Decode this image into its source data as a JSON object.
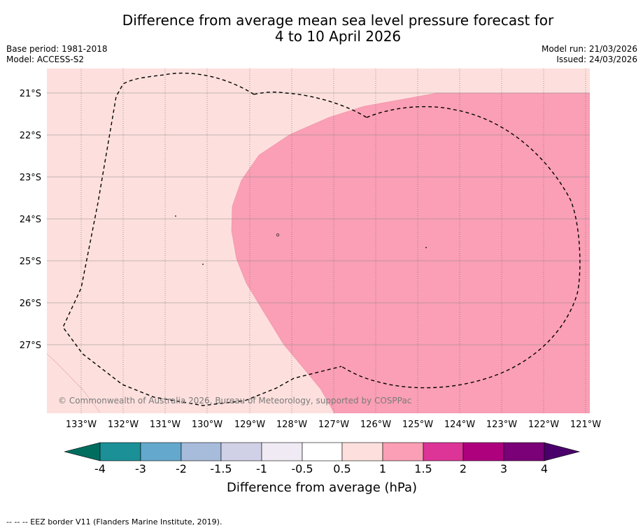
{
  "title": {
    "line1": "Difference from average mean sea level pressure forecast for",
    "line2": "4 to 10 April 2026"
  },
  "meta": {
    "base_period": "Base period: 1981-2018",
    "model": "Model: ACCESS-S2",
    "model_run": "Model run: 21/03/2026",
    "issued": "Issued: 24/03/2026"
  },
  "map": {
    "latitudes": [
      "21°S",
      "22°S",
      "23°S",
      "24°S",
      "25°S",
      "26°S",
      "27°S"
    ],
    "longitudes": [
      "133°W",
      "132°W",
      "131°W",
      "130°W",
      "129°W",
      "128°W",
      "127°W",
      "126°W",
      "125°W",
      "124°W",
      "123°W",
      "122°W",
      "121°W"
    ],
    "copyright": "© Commonwealth of Australia 2026, Bureau of Meteorology, supported by COSPPac",
    "fill_colors": {
      "background": "#fde0dd",
      "high_zone": "#fa9fb5"
    }
  },
  "colorbar": {
    "label": "Difference from average (hPa)",
    "ticks": [
      "-4",
      "-3",
      "-2",
      "-1.5",
      "-1",
      "-0.5",
      "0.5",
      "1",
      "1.5",
      "2",
      "3",
      "4"
    ],
    "colors": [
      "#006d5f",
      "#1b9096",
      "#64a8cd",
      "#a7bbdb",
      "#d0d1e6",
      "#f0eaf4",
      "#ffffff",
      "#fde0dd",
      "#fa9fb5",
      "#dd3497",
      "#ae017e",
      "#7a0177",
      "#49006a"
    ]
  },
  "footnote": "--  --  -- EEZ border V11 (Flanders Marine Institute, 2019)."
}
